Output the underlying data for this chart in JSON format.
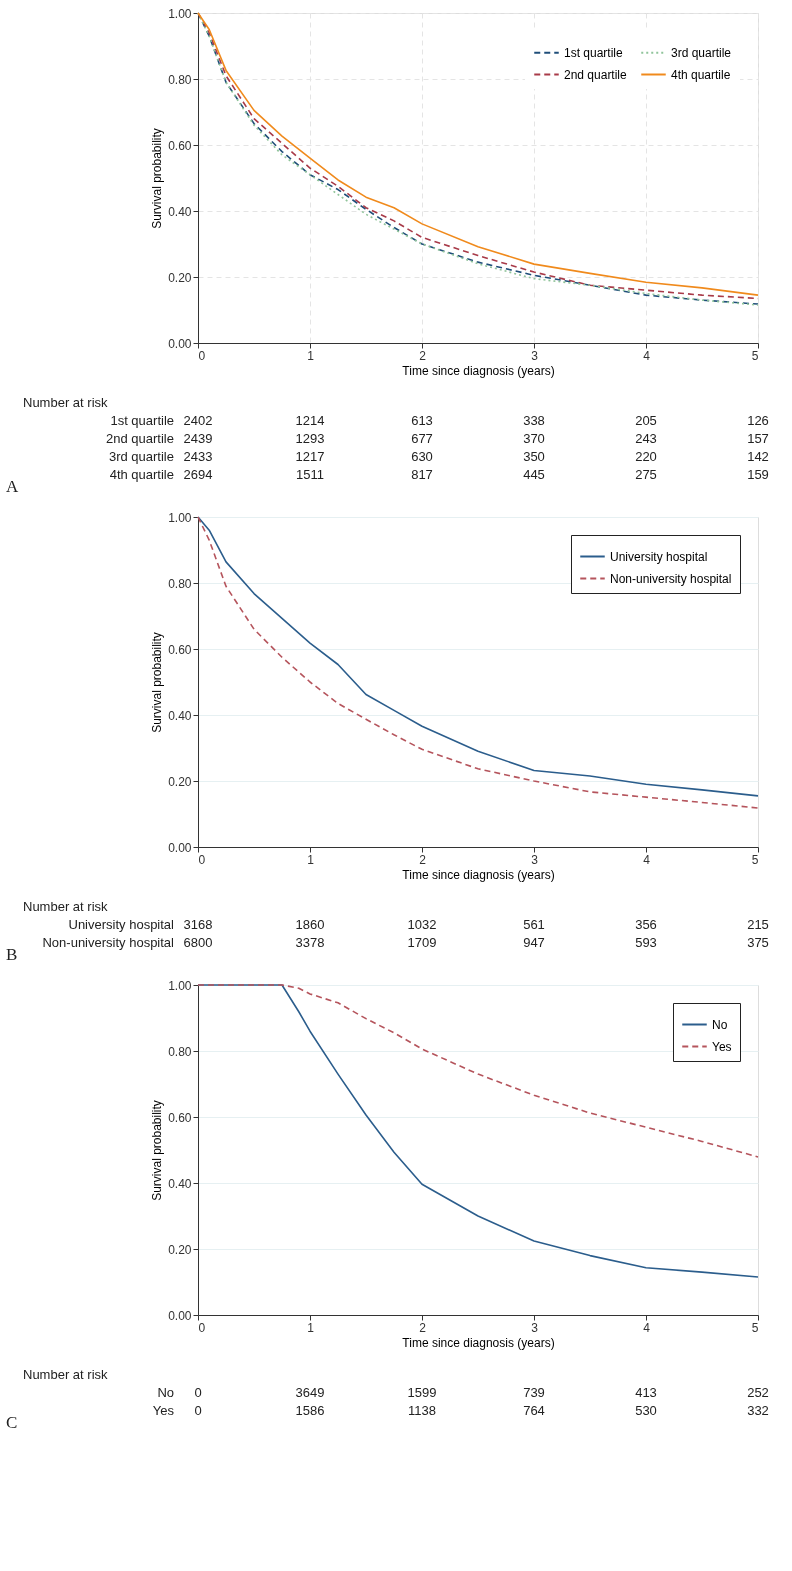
{
  "chart_data": [
    {
      "type": "line",
      "xlabel": "Time since diagnosis (years)",
      "ylabel": "Survival probability",
      "xlim": [
        0,
        5
      ],
      "ylim": [
        0,
        1
      ],
      "xticks": [
        0,
        1,
        2,
        3,
        4,
        5
      ],
      "yticks": [
        {
          "value": 0,
          "label": "0.00"
        },
        {
          "value": 0.2,
          "label": "0.20"
        },
        {
          "value": 0.4,
          "label": "0.40"
        },
        {
          "value": 0.6,
          "label": "0.60"
        },
        {
          "value": 0.8,
          "label": "0.80"
        },
        {
          "value": 1,
          "label": "1.00"
        }
      ],
      "grid": true,
      "legend": "top right",
      "x": [
        0,
        0.1,
        0.25,
        0.5,
        0.75,
        1,
        1.25,
        1.5,
        1.75,
        2,
        2.5,
        3,
        3.5,
        4,
        4.5,
        5
      ],
      "series": [
        {
          "name": "1st quartile",
          "color": "#1f4e79",
          "line_style": "dashed",
          "values": [
            1,
            0.93,
            0.79,
            0.665,
            0.58,
            0.51,
            0.465,
            0.405,
            0.35,
            0.3,
            0.245,
            0.205,
            0.175,
            0.145,
            0.13,
            0.118
          ]
        },
        {
          "name": "2nd quartile",
          "color": "#a83a48",
          "line_style": "dashed",
          "values": [
            1,
            0.94,
            0.81,
            0.68,
            0.605,
            0.53,
            0.475,
            0.41,
            0.37,
            0.32,
            0.265,
            0.215,
            0.175,
            0.16,
            0.145,
            0.135
          ]
        },
        {
          "name": "3rd quartile",
          "color": "#90c49a",
          "line_style": "dotted",
          "values": [
            1,
            0.93,
            0.79,
            0.66,
            0.57,
            0.51,
            0.45,
            0.39,
            0.345,
            0.3,
            0.24,
            0.195,
            0.175,
            0.15,
            0.13,
            0.115
          ]
        },
        {
          "name": "4th quartile",
          "color": "#f08a1c",
          "line_style": "solid",
          "values": [
            1,
            0.95,
            0.826,
            0.705,
            0.627,
            0.56,
            0.494,
            0.442,
            0.41,
            0.361,
            0.292,
            0.239,
            0.211,
            0.184,
            0.167,
            0.145
          ]
        }
      ],
      "annotations": [
        "Number at risk",
        "1st quartile",
        "2402",
        "1214",
        "613",
        "338",
        "205",
        "126",
        "2nd quartile",
        "2439",
        "1293",
        "677",
        "370",
        "243",
        "157",
        "3rd quartile",
        "2433",
        "1217",
        "630",
        "350",
        "220",
        "142",
        "4th quartile",
        "2694",
        "1511",
        "817",
        "445",
        "275",
        "159",
        "A"
      ]
    },
    {
      "type": "line",
      "xlabel": "Time since diagnosis (years)",
      "ylabel": "Survival probability",
      "xlim": [
        0,
        5
      ],
      "ylim": [
        0,
        1
      ],
      "xticks": [
        0,
        1,
        2,
        3,
        4,
        5
      ],
      "yticks": [
        {
          "value": 0,
          "label": "0.00"
        },
        {
          "value": 0.2,
          "label": "0.20"
        },
        {
          "value": 0.4,
          "label": "0.40"
        },
        {
          "value": 0.6,
          "label": "0.60"
        },
        {
          "value": 0.8,
          "label": "0.80"
        },
        {
          "value": 1,
          "label": "1.00"
        }
      ],
      "grid": "y",
      "legend": "top right",
      "x": [
        0,
        0.1,
        0.25,
        0.5,
        0.75,
        1,
        1.25,
        1.5,
        1.75,
        2,
        2.5,
        3,
        3.5,
        4,
        4.5,
        5
      ],
      "series": [
        {
          "name": "University hospital",
          "color": "#2b5d8c",
          "line_style": "solid",
          "values": [
            1,
            0.96,
            0.864,
            0.768,
            0.693,
            0.618,
            0.553,
            0.462,
            0.414,
            0.366,
            0.29,
            0.232,
            0.215,
            0.19,
            0.173,
            0.155
          ]
        },
        {
          "name": "Non-university hospital",
          "color": "#b5545c",
          "line_style": "dashed",
          "values": [
            1,
            0.93,
            0.79,
            0.66,
            0.575,
            0.5,
            0.435,
            0.387,
            0.34,
            0.296,
            0.237,
            0.2,
            0.167,
            0.151,
            0.135,
            0.118
          ]
        }
      ],
      "annotations": [
        "Number at risk",
        "University hospital",
        "3168",
        "1860",
        "1032",
        "561",
        "356",
        "215",
        "Non-university hospital",
        "6800",
        "3378",
        "1709",
        "947",
        "593",
        "375",
        "B"
      ]
    },
    {
      "type": "line",
      "xlabel": "Time since diagnosis (years)",
      "ylabel": "Survival probability",
      "xlim": [
        0,
        5
      ],
      "ylim": [
        0,
        1
      ],
      "xticks": [
        0,
        1,
        2,
        3,
        4,
        5
      ],
      "yticks": [
        {
          "value": 0,
          "label": "0.00"
        },
        {
          "value": 0.2,
          "label": "0.20"
        },
        {
          "value": 0.4,
          "label": "0.40"
        },
        {
          "value": 0.6,
          "label": "0.60"
        },
        {
          "value": 0.8,
          "label": "0.80"
        },
        {
          "value": 1,
          "label": "1.00"
        }
      ],
      "grid": "y",
      "legend": "top right",
      "x": [
        0,
        0.75,
        0.9,
        1,
        1.25,
        1.5,
        1.75,
        2,
        2.5,
        3,
        3.5,
        4,
        4.5,
        5
      ],
      "series": [
        {
          "name": "No",
          "color": "#2b5d8c",
          "line_style": "solid",
          "values": [
            1,
            1,
            0.919,
            0.86,
            0.73,
            0.606,
            0.493,
            0.396,
            0.3,
            0.224,
            0.18,
            0.143,
            0.13,
            0.115
          ]
        },
        {
          "name": "Yes",
          "color": "#b5545c",
          "line_style": "dashed",
          "values": [
            1,
            1,
            0.99,
            0.973,
            0.946,
            0.898,
            0.855,
            0.806,
            0.73,
            0.666,
            0.612,
            0.569,
            0.526,
            0.479
          ]
        }
      ],
      "annotations": [
        "Number at risk",
        "No",
        "0",
        "3649",
        "1599",
        "739",
        "413",
        "252",
        "Yes",
        "0",
        "1586",
        "1138",
        "764",
        "530",
        "332",
        "C"
      ]
    }
  ]
}
